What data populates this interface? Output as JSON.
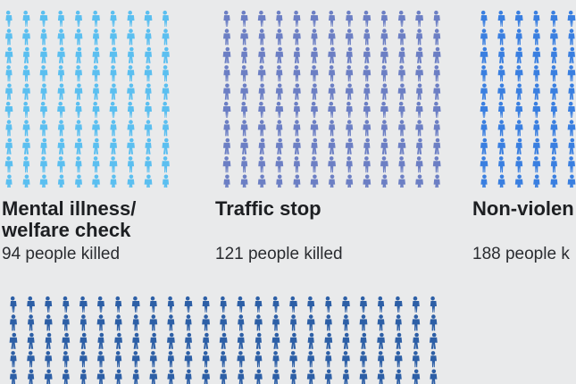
{
  "chart_data": {
    "type": "pictograph",
    "unit": "person",
    "categories": [
      {
        "label": "Mental illness/\nwelfare check",
        "count_text": "94 people killed",
        "value": 94,
        "color": "#5bbff0"
      },
      {
        "label": "Traffic stop",
        "count_text": "121 people killed",
        "value": 121,
        "color": "#6c7fc4"
      },
      {
        "label": "Non-violen",
        "count_text": "188 people k",
        "value": 188,
        "color": "#3a7fe0"
      },
      {
        "label": "",
        "count_text": "",
        "value": null,
        "color": "#2d5fa6"
      }
    ]
  }
}
